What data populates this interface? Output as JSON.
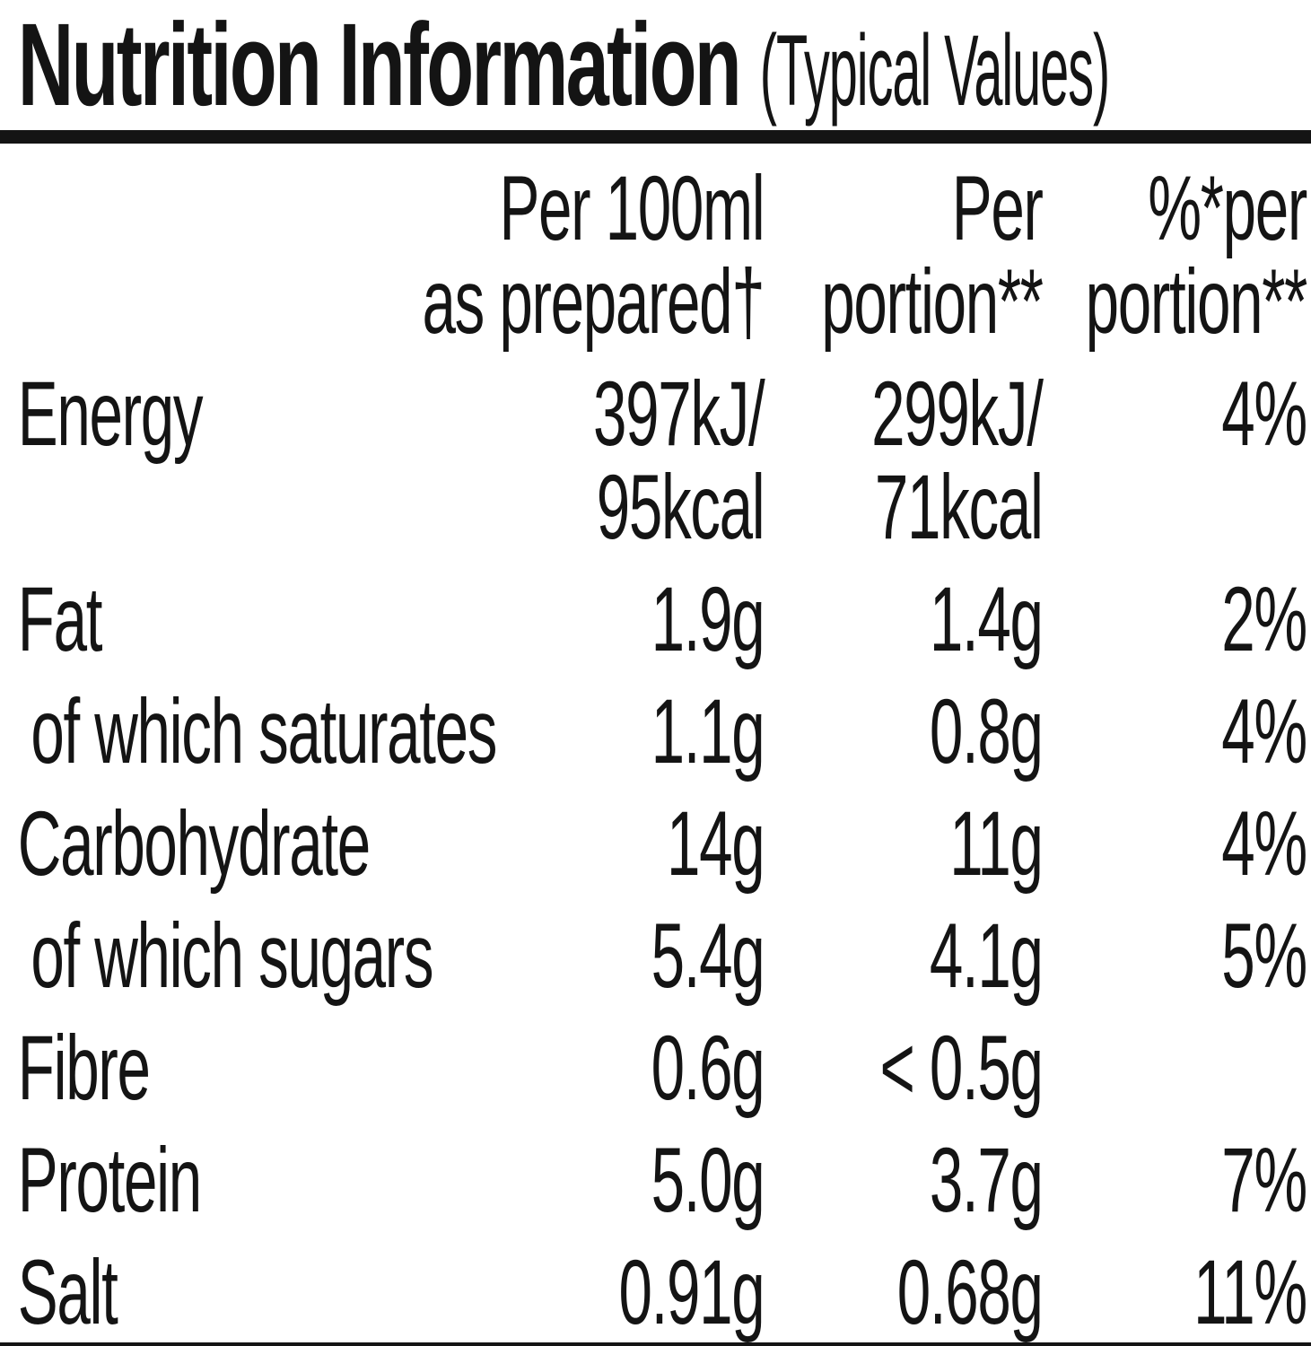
{
  "colors": {
    "text": "#141414",
    "background": "#ffffff"
  },
  "title": {
    "main": "Nutrition Information",
    "qualifier": "(Typical Values)"
  },
  "header": {
    "per_100ml": {
      "line1": "Per 100ml",
      "line2": "as prepared†"
    },
    "per_portion": {
      "line1": "Per",
      "line2": "portion**"
    },
    "percent_per_portion": {
      "line1": "%*per",
      "line2": "portion**"
    }
  },
  "rows": [
    {
      "label": "Energy",
      "per100_line1": "397kJ/",
      "per100_line2": "95kcal",
      "portion_line1": "299kJ/",
      "portion_line2": "71kcal",
      "percent": "4%"
    },
    {
      "label": "Fat",
      "per100": "1.9g",
      "portion": "1.4g",
      "percent": "2%"
    },
    {
      "label": "of which saturates",
      "per100": "1.1g",
      "portion": "0.8g",
      "percent": "4%"
    },
    {
      "label": "Carbohydrate",
      "per100": "14g",
      "portion": "11g",
      "percent": "4%"
    },
    {
      "label": "of which sugars",
      "per100": "5.4g",
      "portion": "4.1g",
      "percent": "5%"
    },
    {
      "label": "Fibre",
      "per100": "0.6g",
      "portion": "< 0.5g",
      "percent": ""
    },
    {
      "label": "Protein",
      "per100": "5.0g",
      "portion": "3.7g",
      "percent": "7%"
    },
    {
      "label": "Salt",
      "per100": "0.91g",
      "portion": "0.68g",
      "percent": "11%"
    }
  ]
}
